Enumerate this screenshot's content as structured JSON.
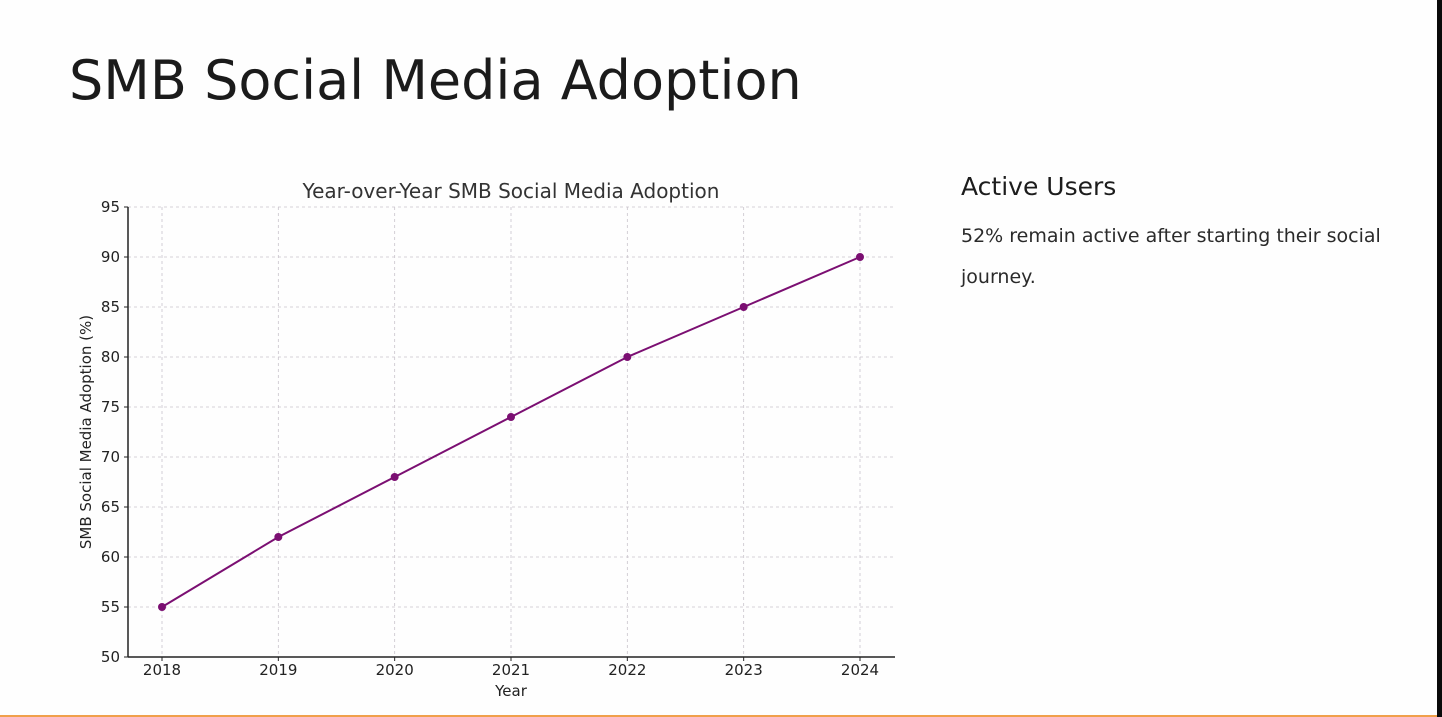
{
  "slide": {
    "title": "SMB Social Media Adoption",
    "side_heading": "Active Users",
    "side_text": "52% remain active after starting their social journey."
  },
  "colors": {
    "line": "#7b0f72",
    "accent_bottom": "#f0a04b",
    "grid": "#c9c4cc",
    "axis": "#222222"
  },
  "chart_data": {
    "type": "line",
    "title": "Year-over-Year SMB Social Media Adoption",
    "xlabel": "Year",
    "ylabel": "SMB Social Media Adoption (%)",
    "categories": [
      "2018",
      "2019",
      "2020",
      "2021",
      "2022",
      "2023",
      "2024"
    ],
    "series": [
      {
        "name": "SMB Social Media Adoption (%)",
        "values": [
          55,
          62,
          68,
          74,
          80,
          85,
          90
        ],
        "marker": "circle"
      }
    ],
    "ylim": [
      50,
      95
    ],
    "yticks": [
      50,
      55,
      60,
      65,
      70,
      75,
      80,
      85,
      90,
      95
    ],
    "grid": true,
    "grid_style": "dashed",
    "legend": "none"
  }
}
